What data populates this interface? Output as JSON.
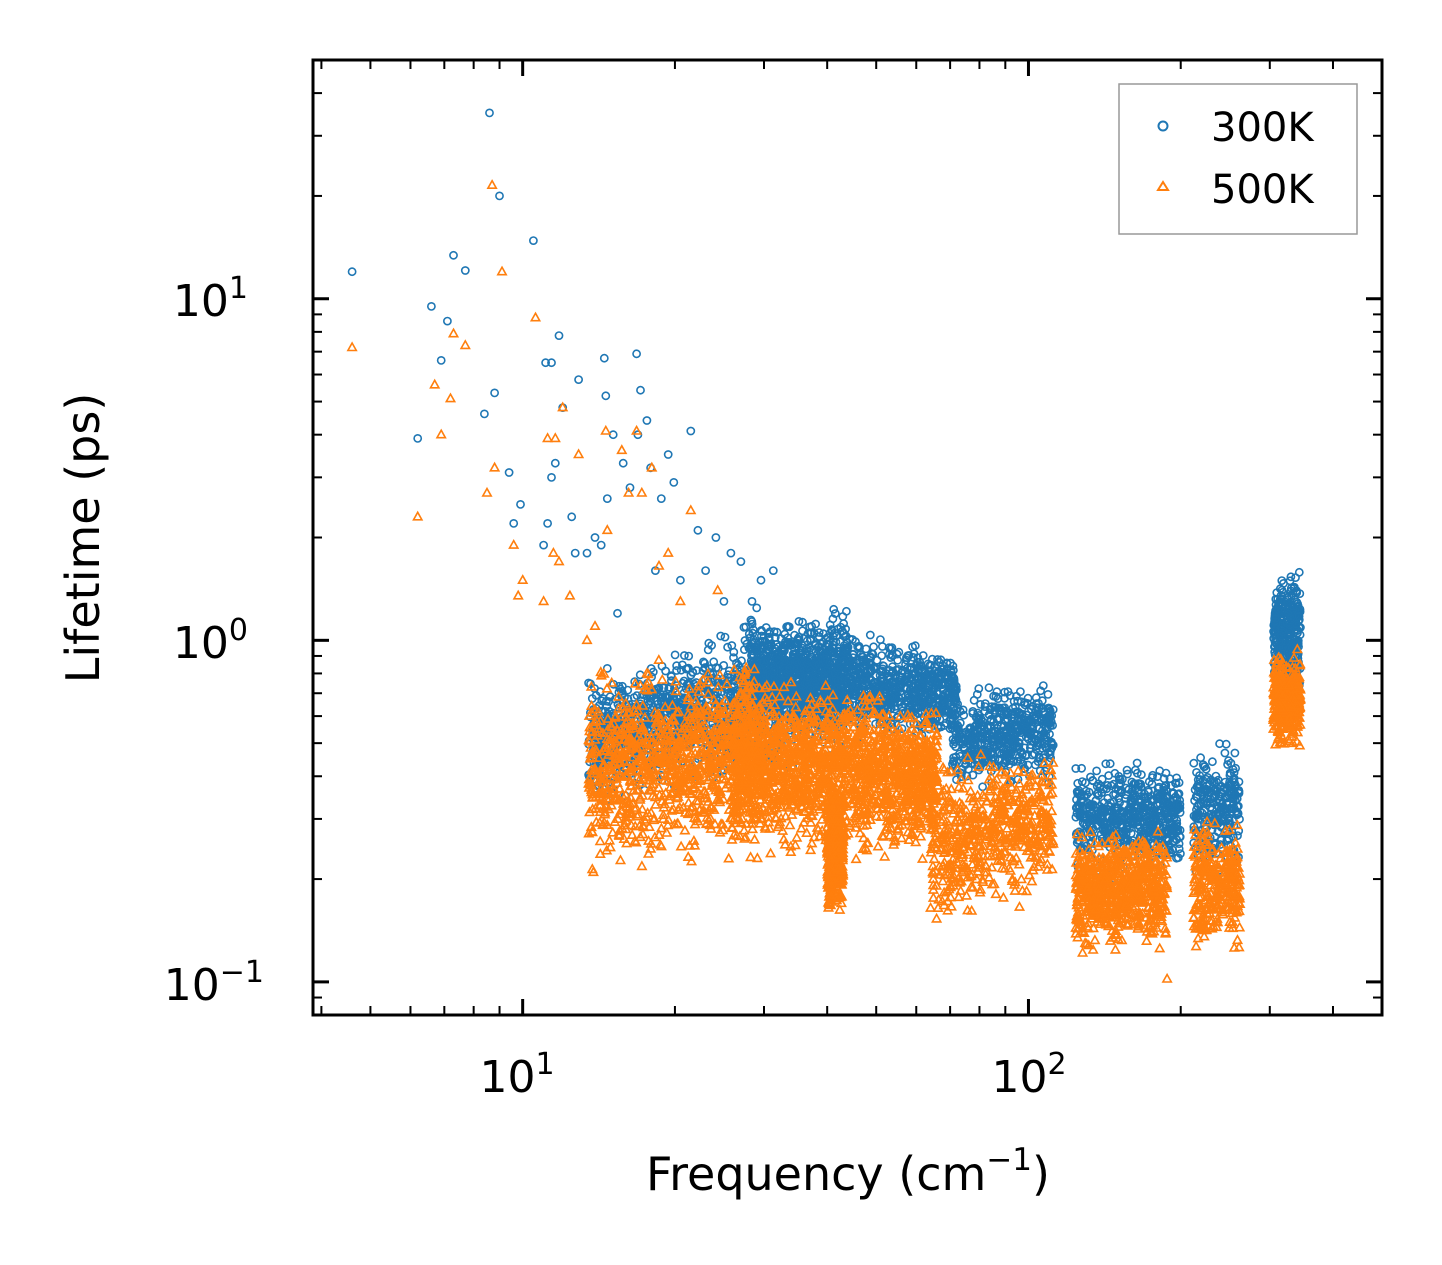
{
  "chart_data": {
    "type": "scatter",
    "xlabel": "Frequency (cm",
    "xlabel_sup": "−1",
    "xlabel_end": ")",
    "ylabel": "Lifetime (ps)",
    "xscale": "log",
    "yscale": "log",
    "xlim": [
      3.85,
      500
    ],
    "ylim": [
      0.08,
      50
    ],
    "x_ticks": [
      {
        "base": "10",
        "exp": "1",
        "value": 10
      },
      {
        "base": "10",
        "exp": "2",
        "value": 100
      }
    ],
    "y_ticks": [
      {
        "base": "10",
        "exp": "−1",
        "value": 0.1
      },
      {
        "base": "10",
        "exp": "0",
        "value": 1
      },
      {
        "base": "10",
        "exp": "1",
        "value": 10
      }
    ],
    "legend_position": "top-right",
    "colors": {
      "s300": "#1f77b4",
      "s500": "#ff7f0e"
    },
    "series": [
      {
        "name": "300K",
        "marker": "circle",
        "points": [
          [
            4.6,
            12.0
          ],
          [
            6.2,
            3.9
          ],
          [
            6.6,
            9.5
          ],
          [
            6.9,
            6.6
          ],
          [
            7.1,
            8.6
          ],
          [
            7.3,
            13.4
          ],
          [
            7.7,
            12.1
          ],
          [
            8.4,
            4.6
          ],
          [
            8.6,
            35.0
          ],
          [
            8.8,
            5.3
          ],
          [
            9.0,
            20.0
          ],
          [
            9.4,
            3.1
          ],
          [
            9.6,
            2.2
          ],
          [
            9.9,
            2.5
          ],
          [
            10.5,
            14.8
          ],
          [
            11.0,
            1.9
          ],
          [
            11.1,
            6.5
          ],
          [
            11.2,
            2.2
          ],
          [
            11.4,
            3.0
          ],
          [
            11.4,
            6.5
          ],
          [
            11.6,
            3.3
          ],
          [
            11.8,
            7.8
          ],
          [
            12.0,
            4.8
          ],
          [
            12.5,
            2.3
          ],
          [
            12.7,
            1.8
          ],
          [
            12.9,
            5.8
          ],
          [
            13.4,
            1.8
          ],
          [
            13.5,
            0.75
          ],
          [
            13.9,
            2.0
          ],
          [
            14.3,
            1.9
          ],
          [
            14.5,
            6.7
          ],
          [
            14.6,
            5.2
          ],
          [
            14.7,
            2.6
          ],
          [
            15.1,
            4.0
          ],
          [
            15.4,
            1.2
          ],
          [
            15.8,
            3.3
          ],
          [
            16.0,
            0.65
          ],
          [
            16.3,
            2.8
          ],
          [
            16.8,
            6.9
          ],
          [
            16.9,
            4.0
          ],
          [
            17.1,
            5.4
          ],
          [
            17.6,
            4.4
          ],
          [
            17.9,
            3.2
          ],
          [
            18.3,
            1.6
          ],
          [
            18.8,
            2.6
          ],
          [
            19.4,
            3.5
          ],
          [
            19.9,
            2.9
          ],
          [
            20.5,
            1.5
          ],
          [
            21.5,
            4.1
          ],
          [
            22.2,
            2.1
          ],
          [
            23.0,
            1.6
          ],
          [
            24.1,
            2.0
          ],
          [
            25.0,
            1.3
          ],
          [
            25.8,
            1.8
          ],
          [
            27.0,
            1.7
          ],
          [
            28.4,
            1.3
          ],
          [
            29.6,
            1.5
          ],
          [
            31.3,
            1.6
          ]
        ]
      },
      {
        "name": "500K",
        "marker": "triangle",
        "points": [
          [
            4.6,
            7.2
          ],
          [
            6.2,
            2.3
          ],
          [
            6.7,
            5.6
          ],
          [
            6.9,
            4.0
          ],
          [
            7.2,
            5.1
          ],
          [
            7.3,
            7.9
          ],
          [
            7.7,
            7.3
          ],
          [
            8.5,
            2.7
          ],
          [
            8.7,
            21.5
          ],
          [
            8.8,
            3.2
          ],
          [
            9.1,
            12.0
          ],
          [
            9.6,
            1.9
          ],
          [
            9.8,
            1.35
          ],
          [
            10.0,
            1.5
          ],
          [
            10.6,
            8.8
          ],
          [
            11.0,
            1.3
          ],
          [
            11.2,
            3.9
          ],
          [
            11.5,
            1.8
          ],
          [
            11.6,
            3.9
          ],
          [
            11.8,
            1.7
          ],
          [
            12.0,
            4.8
          ],
          [
            12.4,
            1.35
          ],
          [
            12.9,
            3.5
          ],
          [
            13.4,
            1.0
          ],
          [
            13.6,
            0.45
          ],
          [
            13.9,
            1.1
          ],
          [
            14.6,
            4.1
          ],
          [
            14.7,
            2.1
          ],
          [
            15.0,
            0.75
          ],
          [
            15.7,
            3.6
          ],
          [
            15.9,
            0.55
          ],
          [
            16.2,
            2.7
          ],
          [
            16.8,
            4.1
          ],
          [
            17.2,
            2.7
          ],
          [
            17.6,
            0.8
          ],
          [
            18.0,
            3.2
          ],
          [
            18.6,
            1.65
          ],
          [
            19.4,
            1.8
          ],
          [
            20.5,
            1.3
          ],
          [
            21.5,
            2.4
          ],
          [
            22.4,
            0.6
          ],
          [
            24.3,
            1.4
          ],
          [
            27.5,
            0.8
          ],
          [
            188,
            0.102
          ]
        ]
      }
    ],
    "clusters": [
      {
        "series": "300K",
        "count": 1500,
        "x_range": [
          13.5,
          44
        ],
        "y_low": [
          0.32,
          0.38
        ],
        "y_high": [
          0.8,
          1.45
        ],
        "seed": 11
      },
      {
        "series": "300K",
        "count": 1300,
        "x_range": [
          28,
          72
        ],
        "y_low": [
          0.5,
          0.5
        ],
        "y_high": [
          1.3,
          0.95
        ],
        "seed": 12
      },
      {
        "series": "300K",
        "count": 500,
        "x_range": [
          70,
          112
        ],
        "y_low": [
          0.33,
          0.38
        ],
        "y_high": [
          0.78,
          0.78
        ],
        "seed": 13
      },
      {
        "series": "300K",
        "count": 600,
        "x_range": [
          124,
          200
        ],
        "y_low": [
          0.19,
          0.19
        ],
        "y_high": [
          0.48,
          0.48
        ],
        "seed": 14
      },
      {
        "series": "300K",
        "count": 260,
        "x_range": [
          212,
          262
        ],
        "y_low": [
          0.19,
          0.19
        ],
        "y_high": [
          0.55,
          0.55
        ],
        "seed": 15
      },
      {
        "series": "300K",
        "count": 320,
        "x_range": [
          305,
          345
        ],
        "y_low": [
          0.62,
          0.62
        ],
        "y_high": [
          1.8,
          1.8
        ],
        "seed": 16
      },
      {
        "series": "500K",
        "count": 1000,
        "x_range": [
          13.5,
          30
        ],
        "y_low": [
          0.17,
          0.23
        ],
        "y_high": [
          0.9,
          0.95
        ],
        "seed": 21
      },
      {
        "series": "500K",
        "count": 1700,
        "x_range": [
          26,
          66
        ],
        "y_low": [
          0.2,
          0.22
        ],
        "y_high": [
          0.95,
          0.7
        ],
        "seed": 22
      },
      {
        "series": "500K",
        "count": 400,
        "x_range": [
          40,
          43
        ],
        "y_low": [
          0.145,
          0.15
        ],
        "y_high": [
          0.4,
          0.4
        ],
        "seed": 23
      },
      {
        "series": "500K",
        "count": 600,
        "x_range": [
          64,
          112
        ],
        "y_low": [
          0.125,
          0.17
        ],
        "y_high": [
          0.5,
          0.5
        ],
        "seed": 24
      },
      {
        "series": "500K",
        "count": 700,
        "x_range": [
          124,
          188
        ],
        "y_low": [
          0.11,
          0.12
        ],
        "y_high": [
          0.3,
          0.29
        ],
        "seed": 25
      },
      {
        "series": "500K",
        "count": 300,
        "x_range": [
          212,
          262
        ],
        "y_low": [
          0.112,
          0.112
        ],
        "y_high": [
          0.33,
          0.33
        ],
        "seed": 26
      },
      {
        "series": "500K",
        "count": 350,
        "x_range": [
          305,
          345
        ],
        "y_low": [
          0.45,
          0.45
        ],
        "y_high": [
          1.0,
          1.0
        ],
        "seed": 27
      }
    ]
  }
}
